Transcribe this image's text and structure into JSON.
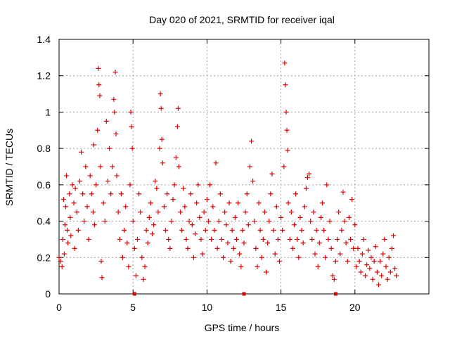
{
  "chart_data": {
    "type": "scatter",
    "title": "Day 020 of 2021, SRMTID for receiver iqal",
    "xlabel": "GPS time / hours",
    "ylabel": "SRMTID / TECUs",
    "xlim": [
      0,
      25
    ],
    "ylim": [
      0,
      1.4
    ],
    "x_ticks": [
      0,
      5,
      10,
      15,
      20
    ],
    "x_tick_labels": [
      "0",
      "5",
      "10",
      "15",
      "20"
    ],
    "y_ticks": [
      0,
      0.2,
      0.4,
      0.6,
      0.8,
      1.0,
      1.2,
      1.4
    ],
    "y_tick_labels": [
      "0",
      "0.2",
      "0.4",
      "0.6",
      "0.8",
      "1",
      "1.2",
      "1.4"
    ],
    "grid": true,
    "marker": "+",
    "color": "#e00000",
    "gap_markers_x": [
      5.1,
      12.5,
      18.7
    ],
    "series": [
      {
        "name": "SRMTID",
        "points": [
          [
            0.0,
            0.2
          ],
          [
            0.1,
            0.18
          ],
          [
            0.2,
            0.15
          ],
          [
            0.25,
            0.3
          ],
          [
            0.3,
            0.52
          ],
          [
            0.35,
            0.22
          ],
          [
            0.4,
            0.38
          ],
          [
            0.45,
            0.48
          ],
          [
            0.5,
            0.65
          ],
          [
            0.55,
            0.35
          ],
          [
            0.6,
            0.28
          ],
          [
            0.7,
            0.55
          ],
          [
            0.75,
            0.42
          ],
          [
            0.8,
            0.32
          ],
          [
            0.9,
            0.6
          ],
          [
            1.0,
            0.5
          ],
          [
            1.05,
            0.25
          ],
          [
            1.1,
            0.58
          ],
          [
            1.2,
            0.45
          ],
          [
            1.3,
            0.35
          ],
          [
            1.4,
            0.62
          ],
          [
            1.5,
            0.78
          ],
          [
            1.6,
            0.55
          ],
          [
            1.7,
            0.4
          ],
          [
            1.8,
            0.7
          ],
          [
            1.9,
            0.48
          ],
          [
            2.0,
            0.3
          ],
          [
            2.1,
            0.65
          ],
          [
            2.2,
            0.55
          ],
          [
            2.3,
            0.45
          ],
          [
            2.35,
            0.82
          ],
          [
            2.4,
            0.38
          ],
          [
            2.5,
            0.6
          ],
          [
            2.6,
            0.9
          ],
          [
            2.65,
            1.24
          ],
          [
            2.7,
            1.15
          ],
          [
            2.75,
            1.09
          ],
          [
            2.8,
            0.7
          ],
          [
            2.85,
            0.18
          ],
          [
            2.9,
            0.09
          ],
          [
            3.0,
            0.5
          ],
          [
            3.1,
            0.4
          ],
          [
            3.2,
            0.95
          ],
          [
            3.3,
            0.62
          ],
          [
            3.4,
            0.8
          ],
          [
            3.5,
            0.55
          ],
          [
            3.6,
            0.7
          ],
          [
            3.7,
            1.07
          ],
          [
            3.75,
            1.0
          ],
          [
            3.8,
            1.22
          ],
          [
            3.85,
            0.88
          ],
          [
            3.9,
            0.65
          ],
          [
            4.0,
            0.45
          ],
          [
            4.1,
            0.3
          ],
          [
            4.2,
            0.55
          ],
          [
            4.3,
            0.2
          ],
          [
            4.4,
            0.35
          ],
          [
            4.5,
            0.48
          ],
          [
            4.6,
            0.28
          ],
          [
            4.7,
            0.15
          ],
          [
            4.8,
            0.6
          ],
          [
            4.85,
            1.0
          ],
          [
            4.9,
            0.92
          ],
          [
            4.95,
            0.8
          ],
          [
            5.0,
            0.4
          ],
          [
            5.1,
            0.25
          ],
          [
            5.2,
            0.1
          ],
          [
            5.3,
            0.3
          ],
          [
            5.4,
            0.55
          ],
          [
            5.5,
            0.45
          ],
          [
            5.6,
            0.2
          ],
          [
            5.7,
            0.08
          ],
          [
            5.8,
            0.15
          ],
          [
            5.9,
            0.35
          ],
          [
            6.0,
            0.28
          ],
          [
            6.1,
            0.42
          ],
          [
            6.2,
            0.5
          ],
          [
            6.3,
            0.33
          ],
          [
            6.4,
            0.38
          ],
          [
            6.5,
            0.62
          ],
          [
            6.6,
            0.58
          ],
          [
            6.7,
            0.45
          ],
          [
            6.8,
            0.8
          ],
          [
            6.85,
            1.1
          ],
          [
            6.9,
            1.02
          ],
          [
            6.95,
            0.85
          ],
          [
            7.0,
            0.72
          ],
          [
            7.1,
            0.48
          ],
          [
            7.2,
            0.35
          ],
          [
            7.3,
            0.55
          ],
          [
            7.4,
            0.3
          ],
          [
            7.5,
            0.25
          ],
          [
            7.6,
            0.4
          ],
          [
            7.7,
            0.52
          ],
          [
            7.8,
            0.6
          ],
          [
            7.9,
            0.75
          ],
          [
            8.0,
            0.92
          ],
          [
            8.05,
            1.02
          ],
          [
            8.1,
            0.7
          ],
          [
            8.2,
            0.45
          ],
          [
            8.3,
            0.35
          ],
          [
            8.4,
            0.58
          ],
          [
            8.5,
            0.48
          ],
          [
            8.6,
            0.3
          ],
          [
            8.7,
            0.25
          ],
          [
            8.8,
            0.4
          ],
          [
            8.9,
            0.55
          ],
          [
            9.0,
            0.38
          ],
          [
            9.1,
            0.2
          ],
          [
            9.2,
            0.33
          ],
          [
            9.3,
            0.5
          ],
          [
            9.4,
            0.6
          ],
          [
            9.5,
            0.42
          ],
          [
            9.6,
            0.3
          ],
          [
            9.7,
            0.22
          ],
          [
            9.8,
            0.45
          ],
          [
            9.9,
            0.35
          ],
          [
            10.0,
            0.52
          ],
          [
            10.1,
            0.4
          ],
          [
            10.2,
            0.6
          ],
          [
            10.3,
            0.3
          ],
          [
            10.4,
            0.48
          ],
          [
            10.5,
            0.35
          ],
          [
            10.6,
            0.72
          ],
          [
            10.7,
            0.25
          ],
          [
            10.8,
            0.4
          ],
          [
            10.9,
            0.55
          ],
          [
            11.0,
            0.3
          ],
          [
            11.1,
            0.2
          ],
          [
            11.2,
            0.45
          ],
          [
            11.3,
            0.38
          ],
          [
            11.4,
            0.28
          ],
          [
            11.5,
            0.5
          ],
          [
            11.6,
            0.18
          ],
          [
            11.7,
            0.35
          ],
          [
            11.8,
            0.25
          ],
          [
            11.9,
            0.42
          ],
          [
            12.0,
            0.3
          ],
          [
            12.1,
            0.5
          ],
          [
            12.2,
            0.22
          ],
          [
            12.3,
            0.15
          ],
          [
            12.4,
            0.35
          ],
          [
            12.5,
            0.28
          ],
          [
            12.6,
            0.45
          ],
          [
            12.7,
            0.55
          ],
          [
            12.8,
            0.38
          ],
          [
            12.9,
            0.7
          ],
          [
            13.0,
            0.84
          ],
          [
            13.1,
            0.62
          ],
          [
            13.2,
            0.4
          ],
          [
            13.3,
            0.25
          ],
          [
            13.4,
            0.15
          ],
          [
            13.5,
            0.5
          ],
          [
            13.6,
            0.35
          ],
          [
            13.7,
            0.2
          ],
          [
            13.8,
            0.3
          ],
          [
            13.9,
            0.45
          ],
          [
            14.0,
            0.12
          ],
          [
            14.1,
            0.28
          ],
          [
            14.2,
            0.4
          ],
          [
            14.3,
            0.55
          ],
          [
            14.4,
            0.66
          ],
          [
            14.5,
            0.35
          ],
          [
            14.6,
            0.22
          ],
          [
            14.7,
            0.48
          ],
          [
            14.8,
            0.3
          ],
          [
            14.9,
            0.18
          ],
          [
            15.0,
            0.42
          ],
          [
            15.1,
            0.35
          ],
          [
            15.2,
            0.7
          ],
          [
            15.25,
            1.27
          ],
          [
            15.3,
            1.15
          ],
          [
            15.35,
            1.0
          ],
          [
            15.4,
            0.9
          ],
          [
            15.45,
            0.79
          ],
          [
            15.5,
            0.5
          ],
          [
            15.6,
            0.3
          ],
          [
            15.7,
            0.45
          ],
          [
            15.8,
            0.25
          ],
          [
            15.9,
            0.38
          ],
          [
            16.0,
            0.55
          ],
          [
            16.1,
            0.3
          ],
          [
            16.2,
            0.2
          ],
          [
            16.3,
            0.42
          ],
          [
            16.4,
            0.35
          ],
          [
            16.5,
            0.28
          ],
          [
            16.6,
            0.48
          ],
          [
            16.7,
            0.58
          ],
          [
            16.8,
            0.64
          ],
          [
            16.9,
            0.66
          ],
          [
            17.0,
            0.4
          ],
          [
            17.1,
            0.3
          ],
          [
            17.2,
            0.45
          ],
          [
            17.3,
            0.22
          ],
          [
            17.4,
            0.35
          ],
          [
            17.5,
            0.15
          ],
          [
            17.6,
            0.28
          ],
          [
            17.7,
            0.42
          ],
          [
            17.8,
            0.5
          ],
          [
            17.9,
            0.35
          ],
          [
            18.0,
            0.2
          ],
          [
            18.1,
            0.6
          ],
          [
            18.2,
            0.3
          ],
          [
            18.3,
            0.4
          ],
          [
            18.4,
            0.25
          ],
          [
            18.5,
            0.1
          ],
          [
            18.6,
            0.08
          ],
          [
            18.7,
            0.18
          ],
          [
            18.8,
            0.3
          ],
          [
            18.9,
            0.45
          ],
          [
            19.0,
            0.22
          ],
          [
            19.1,
            0.35
          ],
          [
            19.2,
            0.56
          ],
          [
            19.3,
            0.4
          ],
          [
            19.4,
            0.28
          ],
          [
            19.5,
            0.18
          ],
          [
            19.6,
            0.42
          ],
          [
            19.7,
            0.3
          ],
          [
            19.8,
            0.52
          ],
          [
            19.9,
            0.25
          ],
          [
            20.0,
            0.38
          ],
          [
            20.1,
            0.15
          ],
          [
            20.2,
            0.25
          ],
          [
            20.3,
            0.18
          ],
          [
            20.4,
            0.12
          ],
          [
            20.5,
            0.22
          ],
          [
            20.6,
            0.3
          ],
          [
            20.7,
            0.1
          ],
          [
            20.8,
            0.16
          ],
          [
            20.9,
            0.24
          ],
          [
            21.0,
            0.14
          ],
          [
            21.1,
            0.2
          ],
          [
            21.2,
            0.08
          ],
          [
            21.3,
            0.18
          ],
          [
            21.4,
            0.26
          ],
          [
            21.5,
            0.12
          ],
          [
            21.6,
            0.05
          ],
          [
            21.7,
            0.18
          ],
          [
            21.8,
            0.1
          ],
          [
            21.9,
            0.22
          ],
          [
            22.0,
            0.3
          ],
          [
            22.1,
            0.15
          ],
          [
            22.2,
            0.08
          ],
          [
            22.3,
            0.2
          ],
          [
            22.4,
            0.12
          ],
          [
            22.5,
            0.25
          ],
          [
            22.6,
            0.32
          ],
          [
            22.7,
            0.14
          ],
          [
            22.8,
            0.1
          ]
        ]
      }
    ]
  }
}
